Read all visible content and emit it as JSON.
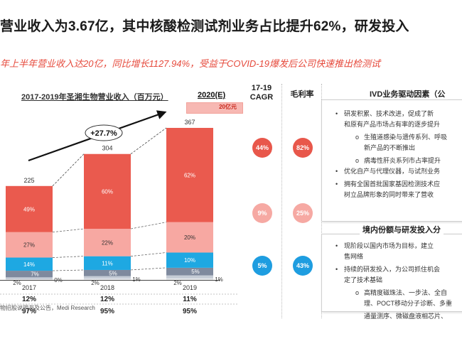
{
  "headline": "营业收入为3.67亿，其中核酸检测试剂业务占比提升62%，研发投入",
  "subline": "年上半年营业收入达20亿，同比增长1127.94%，受益于COVID-19爆发后公司快速推出检测试",
  "chart": {
    "title": "2017-2019年圣湘生物营业收入（百万元）",
    "forecast_label": "2020(E)",
    "forecast_value": "20亿元",
    "growth_label": "+27.7%",
    "row_growth": [
      "12%",
      "12%",
      "11%"
    ],
    "row_margin": [
      "97%",
      "95%",
      "95%"
    ]
  },
  "cagr": {
    "header": "17-19\nCAGR",
    "header_line1": "17-19",
    "header_line2": "CAGR",
    "values": [
      "44%",
      "9%",
      "5%"
    ],
    "colors": [
      "#e8574b",
      "#f6a9a3",
      "#1e9de0"
    ]
  },
  "margin": {
    "header": "毛利率",
    "values": [
      "82%",
      "25%",
      "43%"
    ],
    "colors": [
      "#e8574b",
      "#f6a9a3",
      "#1e9de0"
    ]
  },
  "panel1": {
    "title": "IVD业务驱动因素（公",
    "bullets": [
      {
        "marker": "•",
        "text": "研发积累、技术改进，促成了新"
      },
      {
        "marker": "",
        "text": "和原有产品市场占有率的逐步提升"
      },
      {
        "marker": "o",
        "text": "生殖道感染与遗传系列、呼吸"
      },
      {
        "marker": "",
        "text": "新产品的不断推出"
      },
      {
        "marker": "o",
        "text": "病毒性肝炎系列市占率提升"
      },
      {
        "marker": "•",
        "text": "优化自产与代理仪器，与试剂业务"
      },
      {
        "marker": "•",
        "text": "拥有全国首批国家基因检测技术应"
      },
      {
        "marker": "",
        "text": "树立品牌形象的同时带来了营收"
      }
    ]
  },
  "panel2": {
    "title": "境内份额与研发投入分",
    "bullets": [
      {
        "marker": "•",
        "text": "现阶段以国内市场为目标，建立"
      },
      {
        "marker": "",
        "text": "售网络"
      },
      {
        "marker": "•",
        "text": "持续的研发投入，为公司抓住机会"
      },
      {
        "marker": "",
        "text": "定了技术基础"
      },
      {
        "marker": "o",
        "text": "高精度磁珠法、一步法、全自"
      },
      {
        "marker": "",
        "text": "理、POCT移动分子诊断、多重"
      },
      {
        "marker": "",
        "text": "通量测序、微磁盘液相芯片、"
      }
    ]
  },
  "source": "物招股说明书及公告，Medi Research",
  "chart_data": {
    "type": "bar",
    "title": "2017-2019年圣湘生物营业收入（百万元）",
    "categories": [
      "2017",
      "2018",
      "2019"
    ],
    "totals": [
      225,
      304,
      367
    ],
    "series": [
      {
        "color": "#ea5a4e",
        "percent_labels": [
          "49%",
          "60%",
          "62%"
        ],
        "values": [
          49,
          60,
          62
        ]
      },
      {
        "color": "#f7a8a2",
        "percent_labels": [
          "27%",
          "22%",
          "20%"
        ],
        "values": [
          27,
          22,
          20
        ]
      },
      {
        "color": "#1ea8e2",
        "percent_labels": [
          "14%",
          "11%",
          "10%"
        ],
        "values": [
          14,
          11,
          10
        ]
      },
      {
        "color": "#7f8a9e",
        "percent_labels": [
          "7%",
          "5%",
          "5%"
        ],
        "values": [
          7,
          5,
          5
        ]
      },
      {
        "color": "#c5ccd6",
        "percent_labels": [
          "2%",
          "2%",
          "2%"
        ],
        "values": [
          2,
          2,
          2
        ]
      },
      {
        "color": "#e8eaed",
        "percent_labels": [
          "0%",
          "1%",
          "1%"
        ],
        "values": [
          0,
          1,
          1
        ]
      }
    ],
    "ylim": [
      0,
      367
    ]
  }
}
